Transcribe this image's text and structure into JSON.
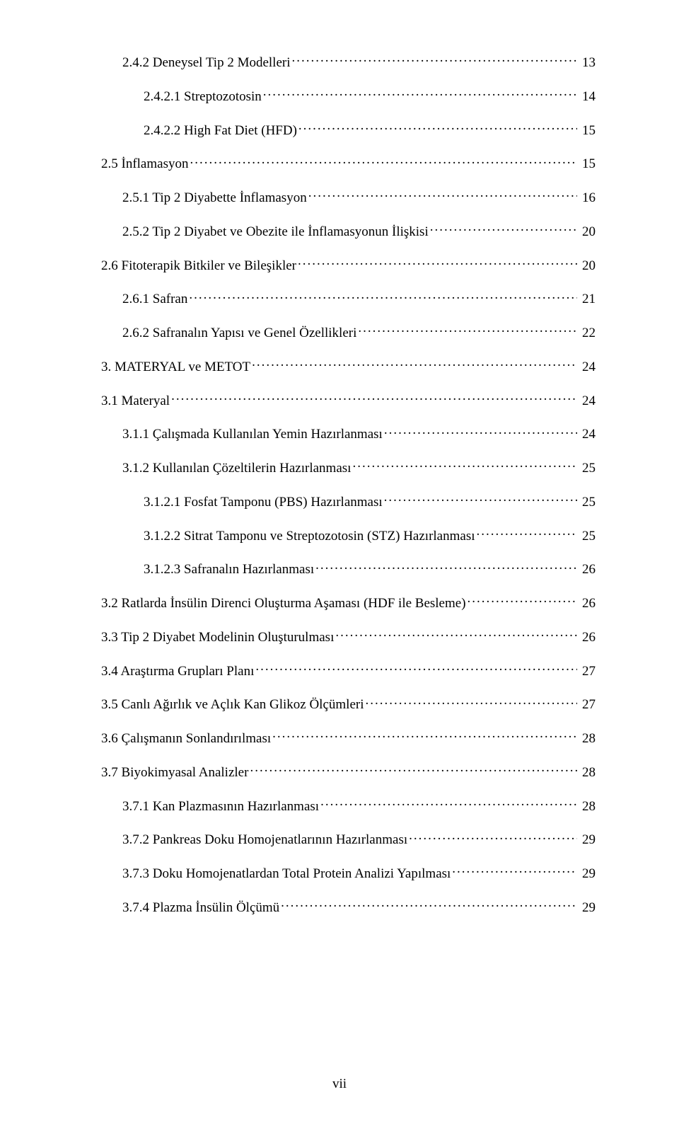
{
  "footer_page_number": "vii",
  "toc": [
    {
      "indent": 1,
      "label": "2.4.2 Deneysel Tip 2 Modelleri",
      "page": "13"
    },
    {
      "indent": 2,
      "label": "2.4.2.1 Streptozotosin",
      "page": "14"
    },
    {
      "indent": 2,
      "label": "2.4.2.2 High Fat Diet (HFD)",
      "page": "15"
    },
    {
      "indent": 0,
      "label": "2.5 İnflamasyon",
      "page": "15"
    },
    {
      "indent": 1,
      "label": "2.5.1 Tip 2 Diyabette İnflamasyon",
      "page": "16"
    },
    {
      "indent": 1,
      "label": "2.5.2 Tip 2 Diyabet ve Obezite ile İnflamasyonun İlişkisi",
      "page": "20"
    },
    {
      "indent": 0,
      "label": "2.6 Fitoterapik Bitkiler ve Bileşikler",
      "page": "20"
    },
    {
      "indent": 1,
      "label": "2.6.1 Safran",
      "page": "21"
    },
    {
      "indent": 1,
      "label": "2.6.2 Safranalın Yapısı ve Genel Özellikleri",
      "page": "22"
    },
    {
      "indent": 0,
      "label": "3. MATERYAL ve METOT",
      "page": "24"
    },
    {
      "indent": 0,
      "label": "3.1 Materyal",
      "page": "24"
    },
    {
      "indent": 1,
      "label": "3.1.1 Çalışmada Kullanılan Yemin Hazırlanması",
      "page": "24"
    },
    {
      "indent": 1,
      "label": "3.1.2 Kullanılan Çözeltilerin Hazırlanması",
      "page": "25"
    },
    {
      "indent": 2,
      "label": "3.1.2.1 Fosfat Tamponu (PBS) Hazırlanması",
      "page": "25"
    },
    {
      "indent": 2,
      "label": "3.1.2.2 Sitrat Tamponu ve Streptozotosin (STZ) Hazırlanması",
      "page": "25"
    },
    {
      "indent": 2,
      "label": "3.1.2.3 Safranalın Hazırlanması",
      "page": "26"
    },
    {
      "indent": 0,
      "label": "3.2 Ratlarda İnsülin Direnci Oluşturma Aşaması (HDF ile Besleme)",
      "page": "26"
    },
    {
      "indent": 0,
      "label": "3.3 Tip 2 Diyabet Modelinin Oluşturulması",
      "page": "26"
    },
    {
      "indent": 0,
      "label": "3.4 Araştırma Grupları Planı",
      "page": "27"
    },
    {
      "indent": 0,
      "label": "3.5 Canlı Ağırlık ve Açlık Kan Glikoz Ölçümleri",
      "page": "27"
    },
    {
      "indent": 0,
      "label": "3.6 Çalışmanın Sonlandırılması",
      "page": "28"
    },
    {
      "indent": 0,
      "label": "3.7 Biyokimyasal Analizler",
      "page": "28"
    },
    {
      "indent": 1,
      "label": "3.7.1 Kan Plazmasının Hazırlanması",
      "page": "28"
    },
    {
      "indent": 1,
      "label": "3.7.2 Pankreas Doku Homojenatlarının Hazırlanması",
      "page": "29"
    },
    {
      "indent": 1,
      "label": "3.7.3 Doku Homojenatlardan Total Protein Analizi Yapılması",
      "page": "29"
    },
    {
      "indent": 1,
      "label": "3.7.4 Plazma İnsülin Ölçümü",
      "page": "29"
    }
  ]
}
